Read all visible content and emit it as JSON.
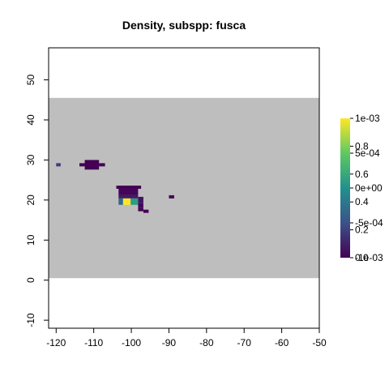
{
  "chart_data": {
    "type": "heatmap",
    "title": "Density, subspp: fusca",
    "xlabel": "",
    "ylabel": "",
    "xlim": [
      -122,
      -50
    ],
    "ylim": [
      -12,
      58
    ],
    "x_ticks": [
      "-120",
      "-110",
      "-100",
      "-90",
      "-80",
      "-70",
      "-60",
      "-50"
    ],
    "x_tick_values": [
      -120,
      -110,
      -100,
      -90,
      -80,
      -70,
      -60,
      -50
    ],
    "y_ticks": [
      "-10",
      "0",
      "10",
      "20",
      "30",
      "40",
      "50"
    ],
    "y_tick_values": [
      -10,
      0,
      10,
      20,
      30,
      40,
      50
    ],
    "background_band": {
      "y_from": 0.5,
      "y_to": 45.5,
      "color": "#bebebe"
    },
    "grid": false,
    "colorscale": [
      "#440154",
      "#3b528b",
      "#21918c",
      "#5ec962",
      "#fde725"
    ],
    "cells": [
      {
        "x0": -120,
        "x1": -118.8,
        "y0": 28.4,
        "y1": 29.2,
        "value": 0.18
      },
      {
        "x0": -113.8,
        "x1": -112.4,
        "y0": 28.4,
        "y1": 29.2,
        "value": 0.0
      },
      {
        "x0": -112.4,
        "x1": -108.6,
        "y0": 27.6,
        "y1": 30.0,
        "value": 0.0
      },
      {
        "x0": -108.6,
        "x1": -107.0,
        "y0": 28.4,
        "y1": 29.2,
        "value": 0.0
      },
      {
        "x0": -104.0,
        "x1": -97.4,
        "y0": 22.8,
        "y1": 23.6,
        "value": 0.0
      },
      {
        "x0": -103.4,
        "x1": -98.2,
        "y0": 21.2,
        "y1": 22.8,
        "value": 0.02
      },
      {
        "x0": -103.4,
        "x1": -98.2,
        "y0": 20.4,
        "y1": 21.2,
        "value": 0.08
      },
      {
        "x0": -103.4,
        "x1": -102.2,
        "y0": 18.8,
        "y1": 20.4,
        "value": 0.35
      },
      {
        "x0": -102.2,
        "x1": -100.2,
        "y0": 18.8,
        "y1": 20.4,
        "value": 1.0
      },
      {
        "x0": -100.2,
        "x1": -98.2,
        "y0": 18.8,
        "y1": 20.4,
        "value": 0.55
      },
      {
        "x0": -98.2,
        "x1": -96.8,
        "y0": 19.2,
        "y1": 20.8,
        "value": 0.06
      },
      {
        "x0": -98.2,
        "x1": -96.8,
        "y0": 18.0,
        "y1": 19.2,
        "value": 0.02
      },
      {
        "x0": -98.2,
        "x1": -96.8,
        "y0": 17.2,
        "y1": 18.0,
        "value": 0.0
      },
      {
        "x0": -96.8,
        "x1": -95.4,
        "y0": 16.8,
        "y1": 17.6,
        "value": 0.0
      },
      {
        "x0": -90.0,
        "x1": -88.6,
        "y0": 20.4,
        "y1": 21.2,
        "value": 0.02
      }
    ],
    "legend": {
      "position": "right",
      "labels_a": [
        {
          "text": "1e-03",
          "t": 1.0
        },
        {
          "text": "5e-04",
          "t": 0.75
        },
        {
          "text": "0e+00",
          "t": 0.5
        },
        {
          "text": "-5e-04",
          "t": 0.25
        },
        {
          "text": "-1e-03",
          "t": 0.0
        }
      ],
      "labels_b": [
        {
          "text": "0.8",
          "t": 0.8
        },
        {
          "text": "0.6",
          "t": 0.6
        },
        {
          "text": "0.4",
          "t": 0.4
        },
        {
          "text": "0.2",
          "t": 0.2
        },
        {
          "text": "0.0",
          "t": 0.0
        }
      ]
    }
  }
}
